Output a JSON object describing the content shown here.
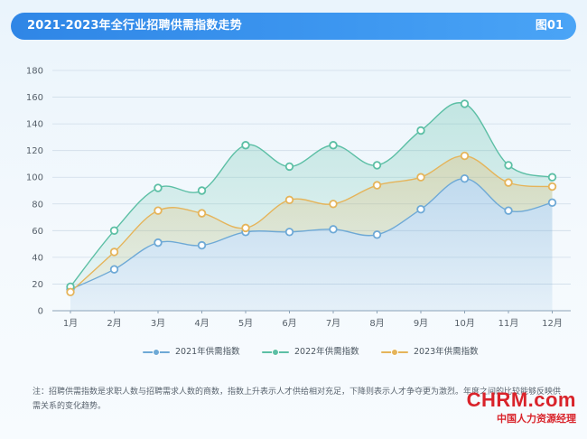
{
  "header": {
    "title": "2021-2023年全行业招聘供需指数走势",
    "figure_label": "图01"
  },
  "chart_data": {
    "type": "line",
    "categories": [
      "1月",
      "2月",
      "3月",
      "4月",
      "5月",
      "6月",
      "7月",
      "8月",
      "9月",
      "10月",
      "11月",
      "12月"
    ],
    "series": [
      {
        "name": "2021年供需指数",
        "color": "#6ea9d6",
        "values": [
          16,
          31,
          51,
          49,
          59,
          59,
          61,
          57,
          76,
          99,
          75,
          81
        ]
      },
      {
        "name": "2022年供需指数",
        "color": "#5cbfa5",
        "values": [
          18,
          60,
          92,
          90,
          124,
          108,
          124,
          109,
          135,
          155,
          109,
          100
        ]
      },
      {
        "name": "2023年供需指数",
        "color": "#e5b45a",
        "values": [
          14,
          44,
          75,
          73,
          62,
          83,
          80,
          94,
          100,
          116,
          96,
          93
        ]
      }
    ],
    "yticks": [
      0,
      20,
      40,
      60,
      80,
      100,
      120,
      140,
      160,
      180
    ],
    "ylim": [
      0,
      180
    ],
    "grid": true,
    "legend_position": "bottom-center"
  },
  "note": "注：招聘供需指数是求职人数与招聘需求人数的商数，指数上升表示人才供给相对充足，下降则表示人才争夺更为激烈。年度之间的比较能够反映供需关系的变化趋势。",
  "logo": {
    "brand": "CHRM.com",
    "brand_cn": "中国人力资源经理"
  }
}
